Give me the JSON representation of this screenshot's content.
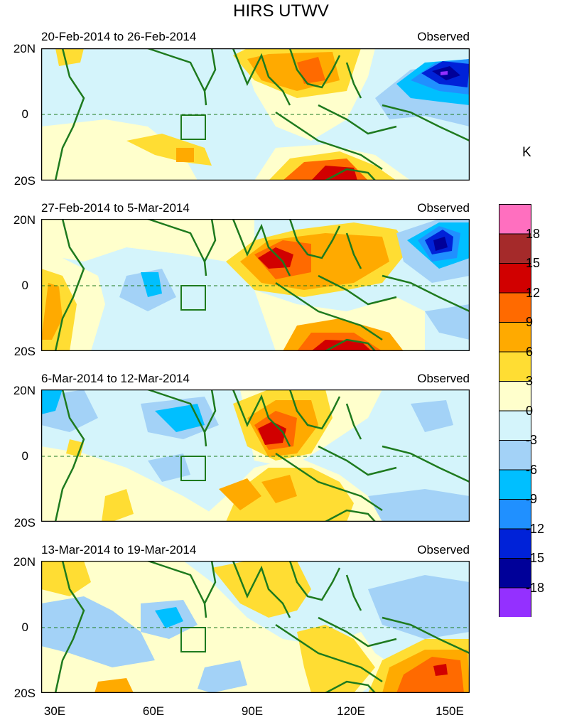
{
  "title": "HIRS UTWV",
  "unit": "K",
  "panels": [
    {
      "date": "20-Feb-2014 to 26-Feb-2014",
      "tag": "Observed"
    },
    {
      "date": "27-Feb-2014 to 5-Mar-2014",
      "tag": "Observed"
    },
    {
      "date": "6-Mar-2014 to 12-Mar-2014",
      "tag": "Observed"
    },
    {
      "date": "13-Mar-2014 to 19-Mar-2014",
      "tag": "Observed"
    }
  ],
  "y_axis": {
    "top": "20N",
    "mid": "0",
    "bottom": "20S"
  },
  "x_axis": [
    "30E",
    "60E",
    "90E",
    "120E",
    "150E"
  ],
  "colorbar": {
    "labels": [
      "18",
      "15",
      "12",
      "9",
      "6",
      "3",
      "0",
      "-3",
      "-6",
      "-9",
      "-12",
      "-15",
      "-18"
    ],
    "colors": [
      "#ff6fbf",
      "#a52a2a",
      "#d10000",
      "#ff6a00",
      "#ffaa00",
      "#ffdd33",
      "#ffffcc",
      "#d4f4fb",
      "#a3d2f7",
      "#00bfff",
      "#2090ff",
      "#0022d8",
      "#000099",
      "#9430ff"
    ]
  },
  "colors": {
    "coast": "#1e7a1e",
    "box": "#1e7a1e"
  }
}
